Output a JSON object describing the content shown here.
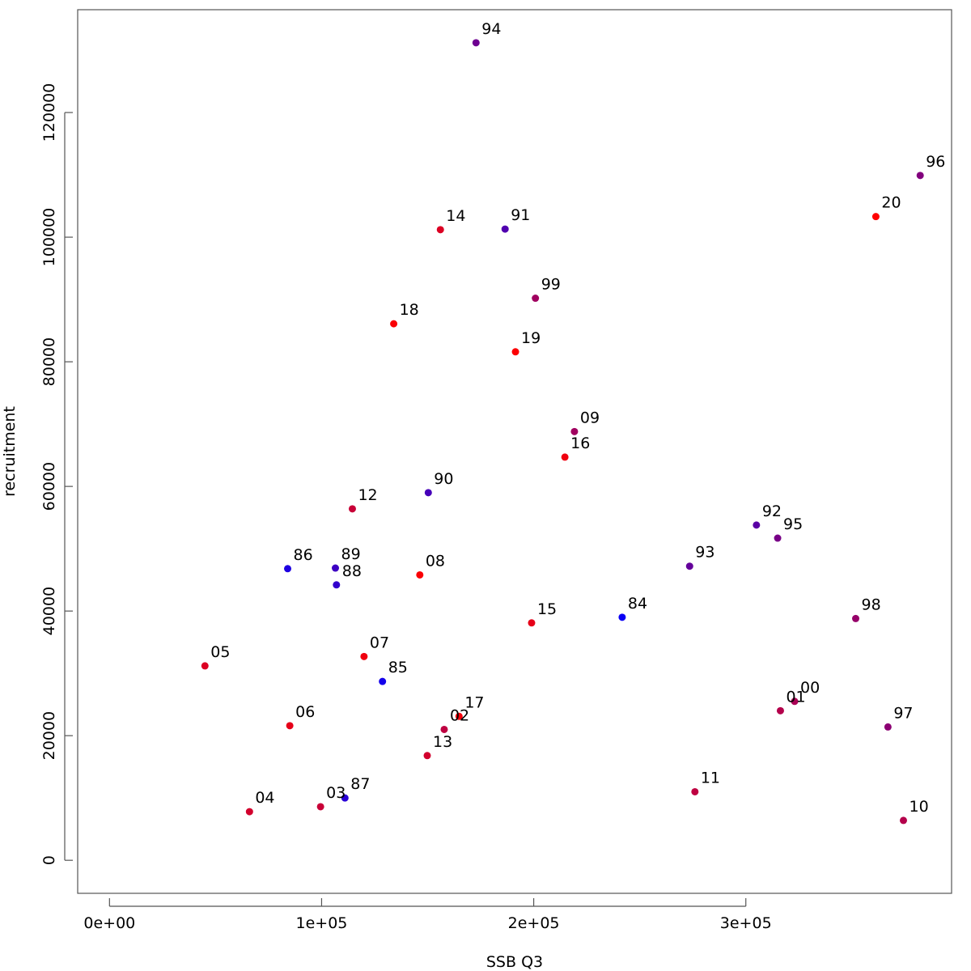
{
  "chart_data": {
    "type": "scatter",
    "xlabel": "SSB Q3",
    "ylabel": "recruitment",
    "xlim": [
      -15000,
      397000
    ],
    "ylim": [
      -5300,
      136500
    ],
    "x_ticks": [
      0,
      100000,
      200000,
      300000
    ],
    "x_tick_labels": [
      "0e+00",
      "1e+05",
      "2e+05",
      "3e+05"
    ],
    "y_ticks": [
      0,
      20000,
      40000,
      60000,
      80000,
      100000,
      120000
    ],
    "y_tick_labels": [
      "0",
      "20000",
      "40000",
      "60000",
      "80000",
      "100000",
      "120000"
    ],
    "grid": false,
    "legend": "none",
    "color_scale": {
      "early": "#0000ff",
      "late": "#ff0000"
    },
    "points": [
      {
        "label": "84",
        "x": 241700,
        "y": 39000,
        "color": "#0a00f5"
      },
      {
        "label": "85",
        "x": 128700,
        "y": 28700,
        "color": "#1400eb"
      },
      {
        "label": "86",
        "x": 84000,
        "y": 46800,
        "color": "#1e00e1"
      },
      {
        "label": "87",
        "x": 111000,
        "y": 10000,
        "color": "#2800d7"
      },
      {
        "label": "88",
        "x": 107000,
        "y": 44200,
        "color": "#3200cd"
      },
      {
        "label": "89",
        "x": 106500,
        "y": 46900,
        "color": "#3c00c3"
      },
      {
        "label": "90",
        "x": 150300,
        "y": 59000,
        "color": "#4600b9"
      },
      {
        "label": "91",
        "x": 186500,
        "y": 101300,
        "color": "#5000af"
      },
      {
        "label": "92",
        "x": 305000,
        "y": 53800,
        "color": "#5a00a5"
      },
      {
        "label": "93",
        "x": 273500,
        "y": 47200,
        "color": "#64009b"
      },
      {
        "label": "94",
        "x": 172800,
        "y": 131200,
        "color": "#6e0091"
      },
      {
        "label": "95",
        "x": 315000,
        "y": 51700,
        "color": "#780087"
      },
      {
        "label": "96",
        "x": 382200,
        "y": 109900,
        "color": "#82007d"
      },
      {
        "label": "97",
        "x": 367000,
        "y": 21400,
        "color": "#8c0073"
      },
      {
        "label": "98",
        "x": 351800,
        "y": 38800,
        "color": "#960069"
      },
      {
        "label": "99",
        "x": 200800,
        "y": 90200,
        "color": "#a0005f"
      },
      {
        "label": "00",
        "x": 323000,
        "y": 25500,
        "color": "#aa0055"
      },
      {
        "label": "01",
        "x": 316300,
        "y": 24000,
        "color": "#b4004b"
      },
      {
        "label": "02",
        "x": 157800,
        "y": 21000,
        "color": "#be0041"
      },
      {
        "label": "03",
        "x": 99500,
        "y": 8600,
        "color": "#c80037"
      },
      {
        "label": "04",
        "x": 66000,
        "y": 7800,
        "color": "#d2002d"
      },
      {
        "label": "05",
        "x": 45000,
        "y": 31200,
        "color": "#dc0023"
      },
      {
        "label": "06",
        "x": 85000,
        "y": 21600,
        "color": "#e60019"
      },
      {
        "label": "07",
        "x": 120000,
        "y": 32700,
        "color": "#f0000f"
      },
      {
        "label": "08",
        "x": 146300,
        "y": 45800,
        "color": "#fa0005"
      },
      {
        "label": "09",
        "x": 219200,
        "y": 68800,
        "color": "#a0005f"
      },
      {
        "label": "10",
        "x": 374300,
        "y": 6400,
        "color": "#b4004b"
      },
      {
        "label": "11",
        "x": 276000,
        "y": 11000,
        "color": "#be0041"
      },
      {
        "label": "12",
        "x": 114500,
        "y": 56400,
        "color": "#c80037"
      },
      {
        "label": "13",
        "x": 149800,
        "y": 16800,
        "color": "#d2002d"
      },
      {
        "label": "14",
        "x": 156000,
        "y": 101200,
        "color": "#dc0023"
      },
      {
        "label": "15",
        "x": 199000,
        "y": 38100,
        "color": "#e60019"
      },
      {
        "label": "16",
        "x": 214700,
        "y": 64700,
        "color": "#f0000f"
      },
      {
        "label": "17",
        "x": 164800,
        "y": 23100,
        "color": "#f5000a"
      },
      {
        "label": "18",
        "x": 134000,
        "y": 86100,
        "color": "#fa0005"
      },
      {
        "label": "19",
        "x": 191400,
        "y": 81600,
        "color": "#fc0003"
      },
      {
        "label": "20",
        "x": 361300,
        "y": 103300,
        "color": "#ff0000"
      }
    ]
  }
}
